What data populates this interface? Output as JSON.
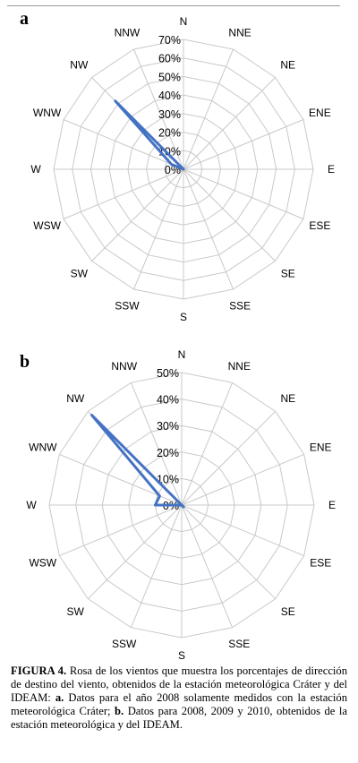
{
  "chart_data": [
    {
      "type": "radar",
      "panel_label": "a",
      "directions": [
        "N",
        "NNE",
        "NE",
        "ENE",
        "E",
        "ESE",
        "SE",
        "SSE",
        "S",
        "SSW",
        "SW",
        "WSW",
        "W",
        "WNW",
        "NW",
        "NNW"
      ],
      "radial_ticks": [
        "0%",
        "10%",
        "20%",
        "30%",
        "40%",
        "50%",
        "60%",
        "70%"
      ],
      "rmax": 70,
      "grid": true,
      "series": [
        {
          "values": [
            0,
            0,
            0,
            0,
            0,
            0,
            0,
            0,
            0,
            0,
            0,
            0,
            0,
            7,
            52,
            0
          ]
        }
      ]
    },
    {
      "type": "radar",
      "panel_label": "b",
      "directions": [
        "N",
        "NNE",
        "NE",
        "ENE",
        "E",
        "ESE",
        "SE",
        "SSE",
        "S",
        "SSW",
        "SW",
        "WSW",
        "W",
        "WNW",
        "NW",
        "NNW"
      ],
      "radial_ticks": [
        "0%",
        "10%",
        "20%",
        "30%",
        "40%",
        "50%"
      ],
      "rmax": 50,
      "grid": true,
      "series": [
        {
          "values": [
            0,
            0,
            0,
            0,
            0,
            0,
            1,
            0,
            0,
            0,
            0,
            0,
            10,
            9,
            48,
            0
          ]
        }
      ]
    }
  ],
  "caption": {
    "figure_label": "FIGURA 4.",
    "text_1": "Rosa de los vientos que muestra los porcentajes de dirección de destino del viento, obtenidos de la estación meteorológica Cráter y del IDEAM:",
    "label_a": "a.",
    "text_2": "Datos para el año 2008 solamente medidos con la estación meteorológica Cráter;",
    "label_b": "b.",
    "text_3": "Datos para 2008, 2009 y 2010, obtenidos de la estación meteorológica y del IDEAM."
  },
  "colors": {
    "series": "#4472c4",
    "grid": "#c9c9c9"
  }
}
